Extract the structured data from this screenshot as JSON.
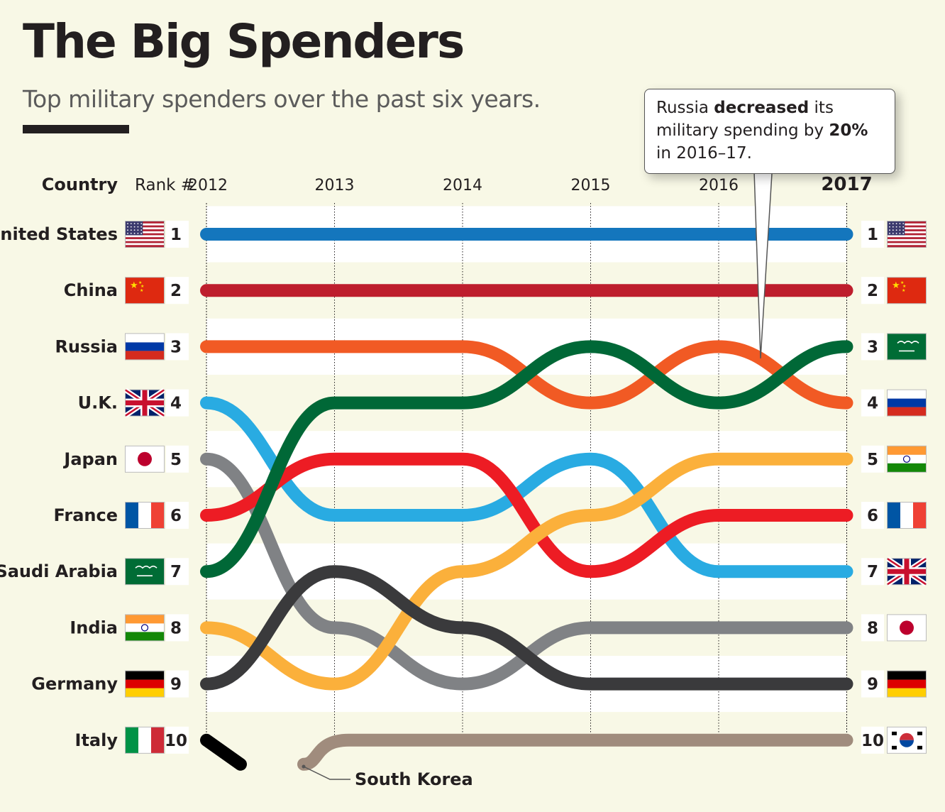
{
  "header": {
    "title": "The Big Spenders",
    "subtitle": "Top military spenders over the past six years."
  },
  "callout": {
    "part1": "Russia ",
    "bold1": "decreased",
    "part2": " its military spending by ",
    "bold2": "20%",
    "part3": " in 2016–17."
  },
  "columns": {
    "country": "Country",
    "rank": "Rank #"
  },
  "chart_data": {
    "type": "line",
    "chart_style": "bump chart (rank over time)",
    "x": [
      "2012",
      "2013",
      "2014",
      "2015",
      "2016",
      "2017"
    ],
    "x_highlight": "2017",
    "y_axis": "Rank #",
    "ylim": [
      1,
      10
    ],
    "ranks_left": [
      "1",
      "2",
      "3",
      "4",
      "5",
      "6",
      "7",
      "8",
      "9",
      "10"
    ],
    "ranks_right": [
      "1",
      "2",
      "3",
      "4",
      "5",
      "6",
      "7",
      "8",
      "9",
      "10"
    ],
    "left_countries": [
      "United States",
      "China",
      "Russia",
      "U.K.",
      "Japan",
      "France",
      "Saudi Arabia",
      "India",
      "Germany",
      "Italy"
    ],
    "right_flags": [
      "us",
      "cn",
      "sa",
      "ru",
      "in",
      "fr",
      "uk",
      "jp",
      "de",
      "kr"
    ],
    "series": [
      {
        "country": "United States",
        "flag": "us",
        "color": "#1476bd",
        "ranks": [
          1,
          1,
          1,
          1,
          1,
          1
        ]
      },
      {
        "country": "China",
        "flag": "cn",
        "color": "#be1e2d",
        "ranks": [
          2,
          2,
          2,
          2,
          2,
          2
        ]
      },
      {
        "country": "Russia",
        "flag": "ru",
        "color": "#f15a24",
        "ranks": [
          3,
          3,
          3,
          4,
          3,
          4
        ]
      },
      {
        "country": "U.K.",
        "flag": "uk",
        "color": "#29abe2",
        "ranks": [
          4,
          6,
          6,
          5,
          7,
          7
        ]
      },
      {
        "country": "Japan",
        "flag": "jp",
        "color": "#808285",
        "ranks": [
          5,
          8,
          9,
          8,
          8,
          8
        ]
      },
      {
        "country": "France",
        "flag": "fr",
        "color": "#ed1c24",
        "ranks": [
          6,
          5,
          5,
          7,
          6,
          6
        ]
      },
      {
        "country": "Saudi Arabia",
        "flag": "sa",
        "color": "#006837",
        "ranks": [
          7,
          4,
          4,
          3,
          4,
          3
        ]
      },
      {
        "country": "India",
        "flag": "in",
        "color": "#fbb03b",
        "ranks": [
          8,
          9,
          7,
          6,
          5,
          5
        ]
      },
      {
        "country": "Germany",
        "flag": "de",
        "color": "#3a3a3c",
        "ranks": [
          9,
          7,
          8,
          9,
          9,
          9
        ]
      },
      {
        "country": "Italy",
        "flag": "it",
        "color": "#000000",
        "ranks": [
          10,
          null,
          null,
          null,
          null,
          null
        ]
      },
      {
        "country": "South Korea",
        "flag": "kr",
        "color": "#a08c7d",
        "ranks": [
          null,
          10,
          10,
          10,
          10,
          10
        ],
        "label": "South Korea"
      }
    ]
  }
}
